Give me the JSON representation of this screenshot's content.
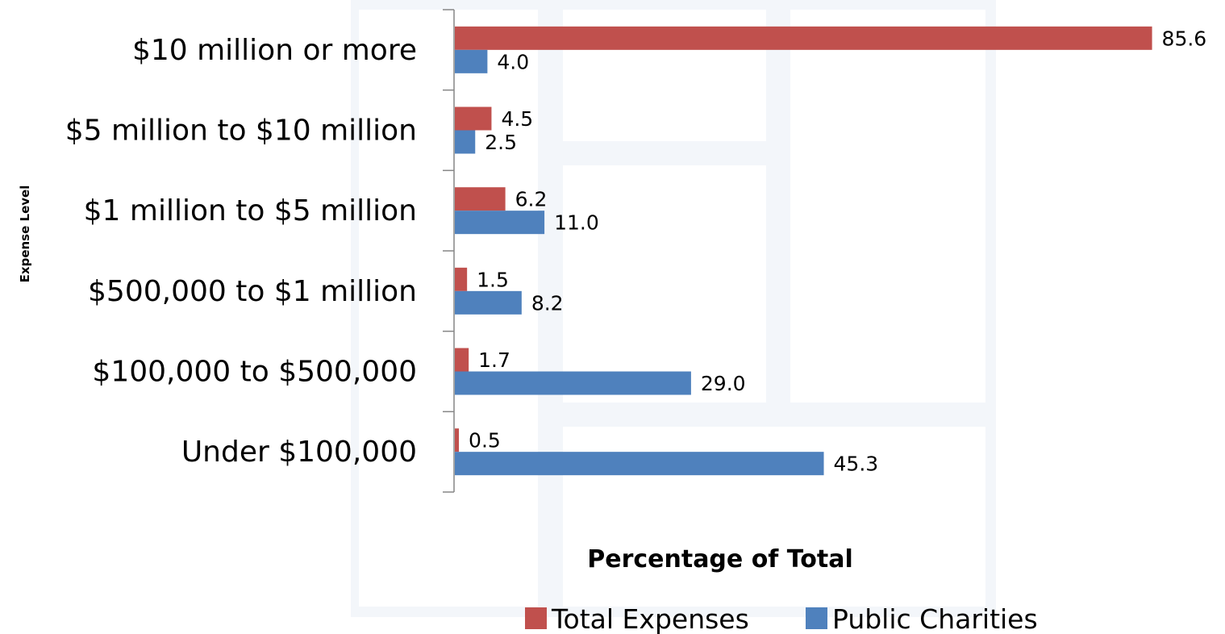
{
  "chart_data": {
    "type": "bar",
    "orientation": "horizontal",
    "categories": [
      "$10 million or more",
      "$5 million to $10 million",
      "$1 million to $5 million",
      "$500,000 to $1 million",
      "$100,000 to $500,000",
      "Under $100,000"
    ],
    "series": [
      {
        "name": "Total Expenses",
        "color": "#C0504D",
        "values": [
          85.6,
          4.5,
          6.2,
          1.5,
          1.7,
          0.5
        ]
      },
      {
        "name": "Public Charities",
        "color": "#4F81BD",
        "values": [
          4.0,
          2.5,
          11.0,
          8.2,
          29.0,
          45.3
        ]
      }
    ],
    "value_labels": [
      [
        "85.6",
        "4.5",
        "6.2",
        "1.5",
        "1.7",
        "0.5"
      ],
      [
        "4.0",
        "2.5",
        "11.0",
        "8.2",
        "29.0",
        "45.3"
      ]
    ],
    "xlabel": "Percentage of Total",
    "ylabel": "Expense Level",
    "xlim": [
      0,
      90
    ],
    "grid": false,
    "legend_position": "bottom"
  }
}
